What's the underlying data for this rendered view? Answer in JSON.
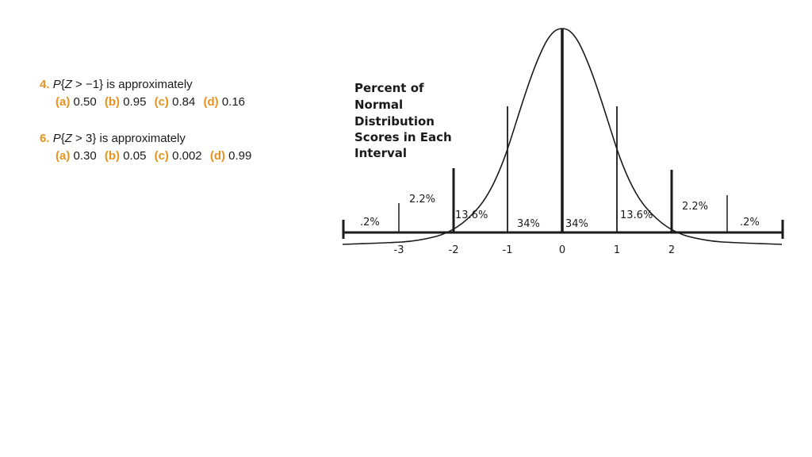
{
  "questions": [
    {
      "number": "4.",
      "prefix": "P",
      "expression_open": "{",
      "variable": "Z",
      "relation": " > −1}",
      "suffix": " is approximately",
      "options": [
        {
          "label": "(a)",
          "value": "0.50"
        },
        {
          "label": "(b)",
          "value": "0.95"
        },
        {
          "label": "(c)",
          "value": "0.84"
        },
        {
          "label": "(d)",
          "value": "0.16"
        }
      ]
    },
    {
      "number": "6.",
      "prefix": "P",
      "expression_open": "{",
      "variable": "Z",
      "relation": " > 3}",
      "suffix": " is approximately",
      "options": [
        {
          "label": "(a)",
          "value": "0.30"
        },
        {
          "label": "(b)",
          "value": "0.05"
        },
        {
          "label": "(c)",
          "value": "0.002"
        },
        {
          "label": "(d)",
          "value": "0.99"
        }
      ]
    }
  ],
  "figure": {
    "title_lines": [
      "Percent of",
      "Normal",
      "Distribution",
      "Scores in Each",
      "Interval"
    ],
    "interval_labels": [
      ".2%",
      "2.2%",
      "13.6%",
      "34%",
      "34%",
      "13.6%",
      "2.2%",
      ".2%"
    ],
    "tick_labels": [
      "-3",
      "-2",
      "-1",
      "0",
      "1",
      "2"
    ]
  },
  "colors": {
    "accent": "#e8921e",
    "text": "#1a1a1a",
    "background": "#ffffff"
  }
}
